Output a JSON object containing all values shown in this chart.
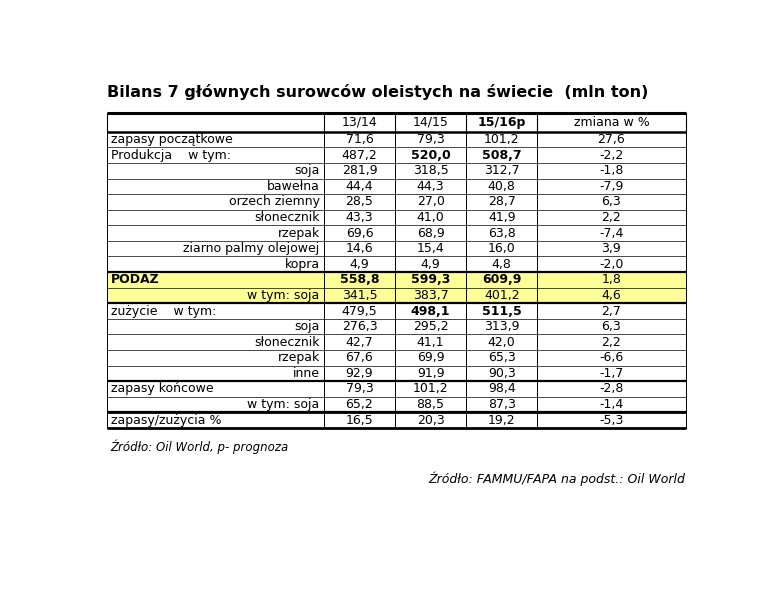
{
  "title": "Bilans 7 głównych surowców oleistych na świecie  (mln ton)",
  "headers": [
    "",
    "13/14",
    "14/15",
    "15/16p",
    "zmiana w %"
  ],
  "header_bold": [
    false,
    false,
    false,
    true,
    false
  ],
  "rows": [
    {
      "label": "zapasy początkowe",
      "label_align": "left",
      "bold": false,
      "values": [
        "71,6",
        "79,3",
        "101,2",
        "27,6"
      ],
      "bold_values": [
        false,
        false,
        false,
        false
      ],
      "highlight": false
    },
    {
      "label": "Produkcja    w tym:",
      "label_align": "left",
      "bold": false,
      "values": [
        "487,2",
        "520,0",
        "508,7",
        "-2,2"
      ],
      "bold_values": [
        false,
        true,
        true,
        false
      ],
      "highlight": false
    },
    {
      "label": "soja",
      "label_align": "right",
      "bold": false,
      "values": [
        "281,9",
        "318,5",
        "312,7",
        "-1,8"
      ],
      "bold_values": [
        false,
        false,
        false,
        false
      ],
      "highlight": false
    },
    {
      "label": "bawełna",
      "label_align": "right",
      "bold": false,
      "values": [
        "44,4",
        "44,3",
        "40,8",
        "-7,9"
      ],
      "bold_values": [
        false,
        false,
        false,
        false
      ],
      "highlight": false
    },
    {
      "label": "orzech ziemny",
      "label_align": "right",
      "bold": false,
      "values": [
        "28,5",
        "27,0",
        "28,7",
        "6,3"
      ],
      "bold_values": [
        false,
        false,
        false,
        false
      ],
      "highlight": false
    },
    {
      "label": "słonecznik",
      "label_align": "right",
      "bold": false,
      "values": [
        "43,3",
        "41,0",
        "41,9",
        "2,2"
      ],
      "bold_values": [
        false,
        false,
        false,
        false
      ],
      "highlight": false
    },
    {
      "label": "rzepak",
      "label_align": "right",
      "bold": false,
      "values": [
        "69,6",
        "68,9",
        "63,8",
        "-7,4"
      ],
      "bold_values": [
        false,
        false,
        false,
        false
      ],
      "highlight": false
    },
    {
      "label": "ziarno palmy olejowej",
      "label_align": "right",
      "bold": false,
      "values": [
        "14,6",
        "15,4",
        "16,0",
        "3,9"
      ],
      "bold_values": [
        false,
        false,
        false,
        false
      ],
      "highlight": false
    },
    {
      "label": "kopra",
      "label_align": "right",
      "bold": false,
      "values": [
        "4,9",
        "4,9",
        "4,8",
        "-2,0"
      ],
      "bold_values": [
        false,
        false,
        false,
        false
      ],
      "highlight": false,
      "thick_bottom": true
    },
    {
      "label": "PODAŻ",
      "label_align": "left",
      "bold": true,
      "values": [
        "558,8",
        "599,3",
        "609,9",
        "1,8"
      ],
      "bold_values": [
        true,
        true,
        true,
        false
      ],
      "highlight": true
    },
    {
      "label": "w tym: soja",
      "label_align": "right",
      "bold": false,
      "values": [
        "341,5",
        "383,7",
        "401,2",
        "4,6"
      ],
      "bold_values": [
        false,
        false,
        false,
        false
      ],
      "highlight": true,
      "thick_bottom": true
    },
    {
      "label": "zużycie    w tym:",
      "label_align": "left",
      "bold": false,
      "values": [
        "479,5",
        "498,1",
        "511,5",
        "2,7"
      ],
      "bold_values": [
        false,
        true,
        true,
        false
      ],
      "highlight": false
    },
    {
      "label": "soja",
      "label_align": "right",
      "bold": false,
      "values": [
        "276,3",
        "295,2",
        "313,9",
        "6,3"
      ],
      "bold_values": [
        false,
        false,
        false,
        false
      ],
      "highlight": false
    },
    {
      "label": "słonecznik",
      "label_align": "right",
      "bold": false,
      "values": [
        "42,7",
        "41,1",
        "42,0",
        "2,2"
      ],
      "bold_values": [
        false,
        false,
        false,
        false
      ],
      "highlight": false
    },
    {
      "label": "rzepak",
      "label_align": "right",
      "bold": false,
      "values": [
        "67,6",
        "69,9",
        "65,3",
        "-6,6"
      ],
      "bold_values": [
        false,
        false,
        false,
        false
      ],
      "highlight": false
    },
    {
      "label": "inne",
      "label_align": "right",
      "bold": false,
      "values": [
        "92,9",
        "91,9",
        "90,3",
        "-1,7"
      ],
      "bold_values": [
        false,
        false,
        false,
        false
      ],
      "highlight": false,
      "thick_bottom": true
    },
    {
      "label": "zapasy końcowe",
      "label_align": "left",
      "bold": false,
      "values": [
        "79,3",
        "101,2",
        "98,4",
        "-2,8"
      ],
      "bold_values": [
        false,
        false,
        false,
        false
      ],
      "highlight": false
    },
    {
      "label": "w tym: soja",
      "label_align": "right",
      "bold": false,
      "values": [
        "65,2",
        "88,5",
        "87,3",
        "-1,4"
      ],
      "bold_values": [
        false,
        false,
        false,
        false
      ],
      "highlight": false,
      "thick_bottom": true
    },
    {
      "label": "zapasy/zużycia %",
      "label_align": "left",
      "bold": false,
      "values": [
        "16,5",
        "20,3",
        "19,2",
        "-5,3"
      ],
      "bold_values": [
        false,
        false,
        false,
        false
      ],
      "highlight": false,
      "last_row": true
    }
  ],
  "footnote1": "Źródło: Oil World, p- prognoza",
  "footnote2": "Źródło: FAMMU/FAPA na podst.: Oil World",
  "highlight_color": "#FFFF99",
  "title_fontsize": 11.5,
  "cell_fontsize": 9.0,
  "footnote_fontsize": 8.5,
  "footnote2_fontsize": 9.0
}
